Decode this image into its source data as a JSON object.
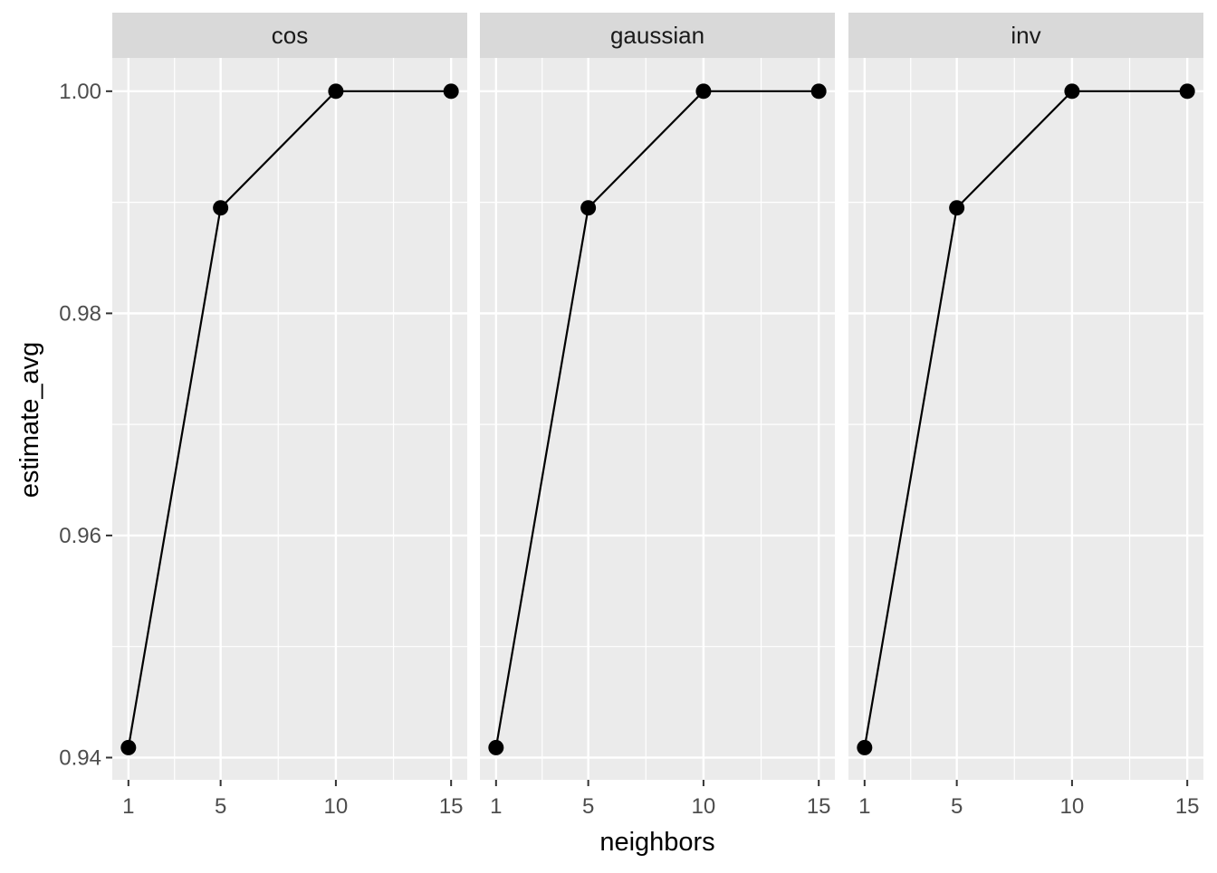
{
  "chart_data": {
    "type": "line",
    "facets": [
      "cos",
      "gaussian",
      "inv"
    ],
    "x": [
      1,
      5,
      10,
      15
    ],
    "series": [
      {
        "facet": "cos",
        "values": [
          0.9409,
          0.9895,
          1.0,
          1.0
        ]
      },
      {
        "facet": "gaussian",
        "values": [
          0.9409,
          0.9895,
          1.0,
          1.0
        ]
      },
      {
        "facet": "inv",
        "values": [
          0.9409,
          0.9895,
          1.0,
          1.0
        ]
      }
    ],
    "xlabel": "neighbors",
    "ylabel": "estimate_avg",
    "xlim": [
      0.3,
      15.7
    ],
    "ylim": [
      0.938,
      1.003
    ],
    "x_ticks": [
      1,
      5,
      10,
      15
    ],
    "x_minor_ticks": [
      3,
      7.5,
      12.5
    ],
    "y_ticks": [
      0.94,
      0.96,
      0.98,
      1.0
    ],
    "y_tick_labels": [
      "0.94",
      "0.96",
      "0.98",
      "1.00"
    ],
    "y_minor_ticks": [
      0.95,
      0.97,
      0.99
    ],
    "grid": true,
    "colors": {
      "panel_background": "#ebebeb",
      "strip_background": "#d9d9d9",
      "grid": "#ffffff",
      "line": "#000000",
      "point": "#000000",
      "tick_label": "#4d4d4d"
    }
  }
}
